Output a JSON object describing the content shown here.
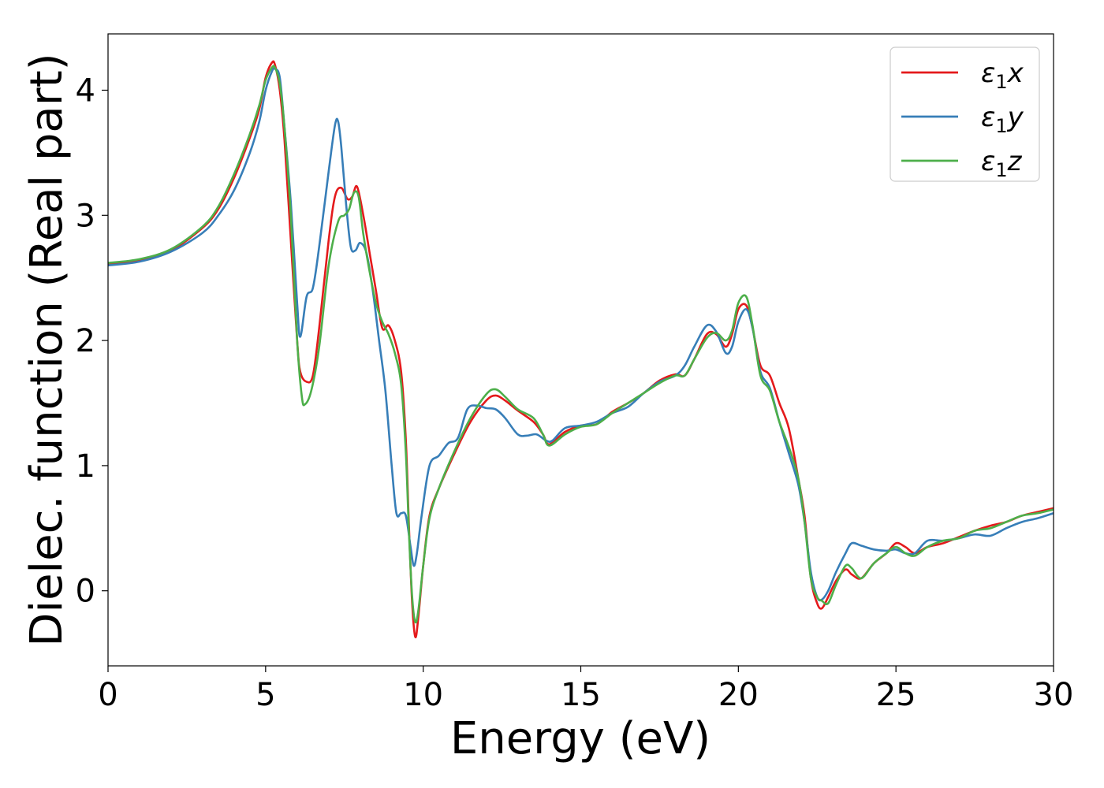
{
  "chart_data": {
    "type": "line",
    "title": "",
    "xlabel": "Energy (eV)",
    "ylabel": "Dielec. function (Real part)",
    "xlim": [
      0,
      30
    ],
    "ylim": [
      -0.6,
      4.45
    ],
    "xticks": [
      0,
      5,
      10,
      15,
      20,
      25,
      30
    ],
    "xtick_labels": [
      "0",
      "5",
      "10",
      "15",
      "20",
      "25",
      "30"
    ],
    "yticks": [
      0,
      1,
      2,
      3,
      4
    ],
    "ytick_labels": [
      "0",
      "1",
      "2",
      "3",
      "4"
    ],
    "grid": false,
    "legend_position": "top-right",
    "series": [
      {
        "name": "ε1x",
        "legend": {
          "base": "ε",
          "sub": "1",
          "var": "x"
        },
        "color": "#e41a1c",
        "x": [
          0,
          1,
          2,
          3,
          3.5,
          4,
          4.5,
          4.8,
          5.0,
          5.2,
          5.3,
          5.45,
          5.6,
          5.8,
          6.0,
          6.1,
          6.3,
          6.5,
          6.7,
          7.0,
          7.2,
          7.4,
          7.6,
          7.75,
          7.9,
          8.1,
          8.3,
          8.5,
          8.7,
          8.9,
          9.1,
          9.3,
          9.45,
          9.55,
          9.65,
          9.75,
          9.85,
          10.0,
          10.2,
          10.5,
          11.0,
          11.5,
          12.0,
          12.3,
          12.6,
          13.0,
          13.5,
          13.8,
          14.0,
          14.5,
          15.0,
          15.5,
          16.0,
          16.5,
          17.0,
          17.5,
          18.0,
          18.3,
          18.6,
          19.0,
          19.3,
          19.6,
          19.8,
          20.0,
          20.25,
          20.45,
          20.7,
          21.0,
          21.3,
          21.6,
          21.9,
          22.1,
          22.3,
          22.5,
          22.65,
          22.85,
          23.1,
          23.4,
          23.6,
          23.9,
          24.3,
          24.7,
          25.0,
          25.3,
          25.6,
          26.0,
          26.5,
          27.0,
          27.5,
          28.0,
          28.5,
          29.0,
          29.5,
          30.0
        ],
        "y": [
          2.61,
          2.64,
          2.72,
          2.9,
          3.05,
          3.3,
          3.62,
          3.85,
          4.1,
          4.22,
          4.2,
          4.0,
          3.6,
          2.8,
          2.0,
          1.75,
          1.67,
          1.72,
          2.1,
          2.8,
          3.15,
          3.22,
          3.13,
          3.15,
          3.23,
          3.0,
          2.7,
          2.4,
          2.1,
          2.12,
          2.0,
          1.75,
          1.2,
          0.5,
          -0.1,
          -0.37,
          -0.2,
          0.2,
          0.6,
          0.82,
          1.1,
          1.35,
          1.52,
          1.56,
          1.52,
          1.44,
          1.35,
          1.25,
          1.17,
          1.27,
          1.32,
          1.33,
          1.43,
          1.5,
          1.58,
          1.68,
          1.73,
          1.72,
          1.85,
          2.05,
          2.05,
          1.95,
          2.05,
          2.25,
          2.28,
          2.1,
          1.8,
          1.72,
          1.5,
          1.3,
          0.9,
          0.6,
          0.1,
          -0.1,
          -0.14,
          -0.05,
          0.08,
          0.17,
          0.13,
          0.1,
          0.22,
          0.3,
          0.38,
          0.35,
          0.3,
          0.35,
          0.38,
          0.43,
          0.48,
          0.52,
          0.55,
          0.6,
          0.63,
          0.66
        ]
      },
      {
        "name": "ε1y",
        "legend": {
          "base": "ε",
          "sub": "1",
          "var": "y"
        },
        "color": "#377eb8",
        "x": [
          0,
          1,
          2,
          3,
          3.5,
          4,
          4.5,
          4.8,
          5.0,
          5.2,
          5.3,
          5.45,
          5.6,
          5.8,
          6.0,
          6.1,
          6.3,
          6.5,
          6.7,
          7.0,
          7.2,
          7.3,
          7.4,
          7.55,
          7.7,
          7.85,
          8.0,
          8.2,
          8.4,
          8.6,
          8.8,
          9.0,
          9.15,
          9.3,
          9.45,
          9.6,
          9.7,
          9.8,
          9.95,
          10.2,
          10.5,
          10.8,
          11.1,
          11.4,
          11.7,
          12.0,
          12.3,
          12.6,
          13.0,
          13.3,
          13.6,
          13.9,
          14.1,
          14.5,
          15.0,
          15.5,
          16.0,
          16.5,
          17.0,
          17.5,
          18.0,
          18.3,
          18.6,
          19.0,
          19.3,
          19.6,
          19.8,
          20.0,
          20.25,
          20.45,
          20.7,
          21.0,
          21.3,
          21.6,
          21.9,
          22.1,
          22.3,
          22.5,
          22.65,
          22.85,
          23.1,
          23.4,
          23.6,
          23.9,
          24.3,
          24.7,
          25.0,
          25.3,
          25.6,
          26.0,
          26.5,
          27.0,
          27.5,
          28.0,
          28.5,
          29.0,
          29.5,
          30.0
        ],
        "y": [
          2.6,
          2.63,
          2.71,
          2.86,
          3.0,
          3.2,
          3.5,
          3.75,
          4.0,
          4.15,
          4.17,
          4.1,
          3.7,
          3.1,
          2.3,
          2.03,
          2.35,
          2.42,
          2.75,
          3.35,
          3.72,
          3.75,
          3.55,
          3.1,
          2.75,
          2.72,
          2.78,
          2.7,
          2.4,
          2.0,
          1.6,
          1.0,
          0.62,
          0.62,
          0.6,
          0.35,
          0.2,
          0.3,
          0.6,
          1.0,
          1.08,
          1.18,
          1.22,
          1.45,
          1.48,
          1.46,
          1.45,
          1.38,
          1.25,
          1.24,
          1.25,
          1.2,
          1.2,
          1.3,
          1.32,
          1.35,
          1.42,
          1.47,
          1.58,
          1.67,
          1.72,
          1.8,
          1.95,
          2.12,
          2.07,
          1.9,
          1.95,
          2.15,
          2.25,
          2.1,
          1.75,
          1.62,
          1.35,
          1.1,
          0.85,
          0.55,
          0.15,
          -0.05,
          -0.07,
          0.0,
          0.15,
          0.3,
          0.38,
          0.36,
          0.33,
          0.32,
          0.33,
          0.3,
          0.3,
          0.4,
          0.4,
          0.42,
          0.45,
          0.44,
          0.5,
          0.55,
          0.58,
          0.62
        ]
      },
      {
        "name": "ε1z",
        "legend": {
          "base": "ε",
          "sub": "1",
          "var": "z"
        },
        "color": "#4daf4a",
        "x": [
          0,
          1,
          2,
          3,
          3.5,
          4,
          4.5,
          4.8,
          5.0,
          5.2,
          5.3,
          5.45,
          5.6,
          5.8,
          6.0,
          6.15,
          6.25,
          6.45,
          6.7,
          7.0,
          7.3,
          7.5,
          7.65,
          7.8,
          7.95,
          8.1,
          8.3,
          8.5,
          8.7,
          8.9,
          9.1,
          9.3,
          9.45,
          9.55,
          9.65,
          9.75,
          9.85,
          10.0,
          10.2,
          10.5,
          11.0,
          11.5,
          12.0,
          12.3,
          12.6,
          13.0,
          13.5,
          13.8,
          14.0,
          14.5,
          15.0,
          15.5,
          16.0,
          16.5,
          17.0,
          17.5,
          18.0,
          18.3,
          18.6,
          19.0,
          19.3,
          19.6,
          19.8,
          20.0,
          20.25,
          20.45,
          20.7,
          21.0,
          21.3,
          21.6,
          21.9,
          22.1,
          22.3,
          22.5,
          22.65,
          22.85,
          23.1,
          23.4,
          23.6,
          23.9,
          24.3,
          24.7,
          25.0,
          25.3,
          25.6,
          26.0,
          26.5,
          27.0,
          27.5,
          28.0,
          28.5,
          29.0,
          29.5,
          30.0
        ],
        "y": [
          2.62,
          2.65,
          2.73,
          2.91,
          3.07,
          3.33,
          3.65,
          3.88,
          4.08,
          4.18,
          4.18,
          4.05,
          3.7,
          3.0,
          2.0,
          1.55,
          1.49,
          1.6,
          1.95,
          2.6,
          2.95,
          3.0,
          3.05,
          3.18,
          3.15,
          2.85,
          2.55,
          2.3,
          2.15,
          2.05,
          1.9,
          1.65,
          1.1,
          0.45,
          -0.05,
          -0.25,
          -0.15,
          0.2,
          0.58,
          0.82,
          1.12,
          1.38,
          1.57,
          1.61,
          1.55,
          1.45,
          1.38,
          1.25,
          1.16,
          1.25,
          1.31,
          1.33,
          1.42,
          1.5,
          1.58,
          1.66,
          1.72,
          1.72,
          1.85,
          2.02,
          2.06,
          2.0,
          2.08,
          2.3,
          2.35,
          2.12,
          1.72,
          1.6,
          1.35,
          1.15,
          0.9,
          0.55,
          0.1,
          -0.05,
          -0.08,
          -0.1,
          0.05,
          0.2,
          0.18,
          0.1,
          0.22,
          0.3,
          0.35,
          0.3,
          0.28,
          0.35,
          0.4,
          0.42,
          0.48,
          0.5,
          0.55,
          0.6,
          0.62,
          0.65
        ]
      }
    ]
  }
}
